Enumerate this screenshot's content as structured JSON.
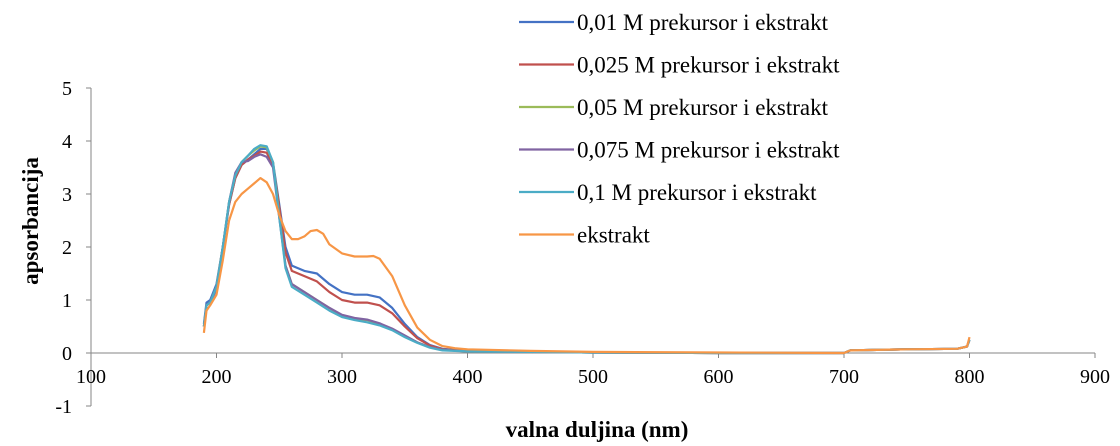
{
  "chart_data": {
    "type": "line",
    "title": "",
    "xlabel": "valna duljina (nm)",
    "ylabel": "apsorbancija",
    "xlim": [
      100,
      900
    ],
    "ylim": [
      -1,
      5
    ],
    "x_ticks": [
      "100",
      "200",
      "300",
      "400",
      "500",
      "600",
      "700",
      "800",
      "900"
    ],
    "y_ticks": [
      "-1",
      "0",
      "1",
      "2",
      "3",
      "4",
      "5"
    ],
    "grid": false,
    "legend_position": "top-right",
    "series": [
      {
        "name": "0,01 M prekursor i ekstrakt",
        "color": "#4472C4",
        "points": [
          [
            190,
            0.55
          ],
          [
            192,
            0.95
          ],
          [
            195,
            1.0
          ],
          [
            200,
            1.3
          ],
          [
            205,
            2.0
          ],
          [
            210,
            2.8
          ],
          [
            215,
            3.3
          ],
          [
            220,
            3.55
          ],
          [
            225,
            3.65
          ],
          [
            230,
            3.75
          ],
          [
            235,
            3.85
          ],
          [
            240,
            3.85
          ],
          [
            245,
            3.6
          ],
          [
            250,
            2.8
          ],
          [
            255,
            2.0
          ],
          [
            260,
            1.65
          ],
          [
            270,
            1.55
          ],
          [
            280,
            1.5
          ],
          [
            290,
            1.3
          ],
          [
            300,
            1.15
          ],
          [
            310,
            1.1
          ],
          [
            320,
            1.1
          ],
          [
            330,
            1.05
          ],
          [
            340,
            0.85
          ],
          [
            350,
            0.55
          ],
          [
            360,
            0.3
          ],
          [
            370,
            0.15
          ],
          [
            380,
            0.08
          ],
          [
            400,
            0.04
          ],
          [
            450,
            0.02
          ],
          [
            500,
            0.01
          ],
          [
            600,
            0.0
          ],
          [
            700,
            0.0
          ],
          [
            705,
            0.05
          ],
          [
            750,
            0.07
          ],
          [
            790,
            0.08
          ],
          [
            798,
            0.12
          ],
          [
            800,
            0.25
          ]
        ]
      },
      {
        "name": "0,025 M prekursor i ekstrakt",
        "color": "#C0504D",
        "points": [
          [
            190,
            0.5
          ],
          [
            192,
            0.9
          ],
          [
            195,
            0.95
          ],
          [
            200,
            1.25
          ],
          [
            205,
            2.0
          ],
          [
            210,
            2.8
          ],
          [
            215,
            3.3
          ],
          [
            220,
            3.55
          ],
          [
            225,
            3.65
          ],
          [
            230,
            3.72
          ],
          [
            235,
            3.8
          ],
          [
            240,
            3.78
          ],
          [
            245,
            3.55
          ],
          [
            250,
            2.75
          ],
          [
            255,
            1.9
          ],
          [
            260,
            1.55
          ],
          [
            270,
            1.45
          ],
          [
            280,
            1.35
          ],
          [
            290,
            1.15
          ],
          [
            300,
            1.0
          ],
          [
            310,
            0.95
          ],
          [
            320,
            0.95
          ],
          [
            330,
            0.9
          ],
          [
            340,
            0.75
          ],
          [
            350,
            0.5
          ],
          [
            360,
            0.28
          ],
          [
            370,
            0.14
          ],
          [
            380,
            0.07
          ],
          [
            400,
            0.04
          ],
          [
            450,
            0.02
          ],
          [
            500,
            0.01
          ],
          [
            600,
            0.0
          ],
          [
            700,
            0.0
          ],
          [
            705,
            0.05
          ],
          [
            750,
            0.07
          ],
          [
            790,
            0.08
          ],
          [
            798,
            0.12
          ],
          [
            800,
            0.25
          ]
        ]
      },
      {
        "name": "0,05 M prekursor i ekstrakt",
        "color": "#9BBB59",
        "points": [
          [
            190,
            0.5
          ],
          [
            192,
            0.9
          ],
          [
            195,
            0.95
          ],
          [
            200,
            1.25
          ],
          [
            205,
            2.0
          ],
          [
            210,
            2.85
          ],
          [
            215,
            3.35
          ],
          [
            220,
            3.6
          ],
          [
            225,
            3.72
          ],
          [
            230,
            3.82
          ],
          [
            235,
            3.9
          ],
          [
            240,
            3.88
          ],
          [
            245,
            3.6
          ],
          [
            250,
            2.6
          ],
          [
            255,
            1.65
          ],
          [
            260,
            1.3
          ],
          [
            270,
            1.15
          ],
          [
            280,
            1.0
          ],
          [
            290,
            0.85
          ],
          [
            300,
            0.7
          ],
          [
            310,
            0.65
          ],
          [
            320,
            0.62
          ],
          [
            330,
            0.55
          ],
          [
            340,
            0.45
          ],
          [
            350,
            0.32
          ],
          [
            360,
            0.2
          ],
          [
            370,
            0.11
          ],
          [
            380,
            0.06
          ],
          [
            400,
            0.03
          ],
          [
            450,
            0.02
          ],
          [
            500,
            0.01
          ],
          [
            600,
            0.0
          ],
          [
            700,
            0.0
          ],
          [
            705,
            0.05
          ],
          [
            750,
            0.07
          ],
          [
            790,
            0.08
          ],
          [
            798,
            0.12
          ],
          [
            800,
            0.25
          ]
        ]
      },
      {
        "name": "0,075 M prekursor i ekstrakt",
        "color": "#8064A2",
        "points": [
          [
            190,
            0.5
          ],
          [
            192,
            0.9
          ],
          [
            195,
            0.95
          ],
          [
            200,
            1.2
          ],
          [
            205,
            2.0
          ],
          [
            210,
            2.85
          ],
          [
            215,
            3.4
          ],
          [
            220,
            3.6
          ],
          [
            225,
            3.62
          ],
          [
            230,
            3.7
          ],
          [
            235,
            3.75
          ],
          [
            240,
            3.7
          ],
          [
            245,
            3.5
          ],
          [
            250,
            2.55
          ],
          [
            255,
            1.65
          ],
          [
            260,
            1.3
          ],
          [
            270,
            1.15
          ],
          [
            280,
            1.0
          ],
          [
            290,
            0.85
          ],
          [
            300,
            0.72
          ],
          [
            310,
            0.66
          ],
          [
            320,
            0.63
          ],
          [
            330,
            0.56
          ],
          [
            340,
            0.46
          ],
          [
            350,
            0.33
          ],
          [
            360,
            0.2
          ],
          [
            370,
            0.11
          ],
          [
            380,
            0.06
          ],
          [
            400,
            0.03
          ],
          [
            450,
            0.02
          ],
          [
            500,
            0.01
          ],
          [
            600,
            0.0
          ],
          [
            700,
            0.0
          ],
          [
            705,
            0.05
          ],
          [
            750,
            0.07
          ],
          [
            790,
            0.08
          ],
          [
            798,
            0.12
          ],
          [
            800,
            0.25
          ]
        ]
      },
      {
        "name": "0,1 M prekursor i ekstrakt",
        "color": "#4BACC6",
        "points": [
          [
            190,
            0.5
          ],
          [
            192,
            0.9
          ],
          [
            195,
            0.95
          ],
          [
            200,
            1.25
          ],
          [
            205,
            2.0
          ],
          [
            210,
            2.85
          ],
          [
            215,
            3.35
          ],
          [
            220,
            3.6
          ],
          [
            225,
            3.72
          ],
          [
            230,
            3.85
          ],
          [
            235,
            3.92
          ],
          [
            240,
            3.9
          ],
          [
            245,
            3.6
          ],
          [
            250,
            2.55
          ],
          [
            255,
            1.6
          ],
          [
            260,
            1.25
          ],
          [
            270,
            1.1
          ],
          [
            280,
            0.95
          ],
          [
            290,
            0.8
          ],
          [
            300,
            0.68
          ],
          [
            310,
            0.62
          ],
          [
            320,
            0.58
          ],
          [
            330,
            0.52
          ],
          [
            340,
            0.43
          ],
          [
            350,
            0.3
          ],
          [
            360,
            0.19
          ],
          [
            370,
            0.1
          ],
          [
            380,
            0.05
          ],
          [
            400,
            0.03
          ],
          [
            450,
            0.02
          ],
          [
            500,
            0.01
          ],
          [
            600,
            0.0
          ],
          [
            700,
            0.0
          ],
          [
            705,
            0.05
          ],
          [
            750,
            0.07
          ],
          [
            790,
            0.08
          ],
          [
            798,
            0.12
          ],
          [
            800,
            0.25
          ]
        ]
      },
      {
        "name": "ekstrakt",
        "color": "#F79646",
        "points": [
          [
            190,
            0.38
          ],
          [
            192,
            0.8
          ],
          [
            195,
            0.9
          ],
          [
            200,
            1.1
          ],
          [
            205,
            1.75
          ],
          [
            210,
            2.5
          ],
          [
            215,
            2.85
          ],
          [
            220,
            3.0
          ],
          [
            225,
            3.1
          ],
          [
            230,
            3.2
          ],
          [
            235,
            3.3
          ],
          [
            240,
            3.22
          ],
          [
            245,
            3.0
          ],
          [
            250,
            2.6
          ],
          [
            255,
            2.3
          ],
          [
            260,
            2.15
          ],
          [
            265,
            2.15
          ],
          [
            270,
            2.2
          ],
          [
            275,
            2.3
          ],
          [
            280,
            2.32
          ],
          [
            285,
            2.25
          ],
          [
            290,
            2.05
          ],
          [
            300,
            1.88
          ],
          [
            310,
            1.82
          ],
          [
            320,
            1.82
          ],
          [
            325,
            1.83
          ],
          [
            330,
            1.78
          ],
          [
            340,
            1.45
          ],
          [
            350,
            0.9
          ],
          [
            360,
            0.48
          ],
          [
            370,
            0.25
          ],
          [
            380,
            0.13
          ],
          [
            390,
            0.09
          ],
          [
            400,
            0.07
          ],
          [
            450,
            0.04
          ],
          [
            500,
            0.02
          ],
          [
            600,
            0.01
          ],
          [
            700,
            0.0
          ],
          [
            705,
            0.05
          ],
          [
            750,
            0.07
          ],
          [
            790,
            0.08
          ],
          [
            798,
            0.12
          ],
          [
            800,
            0.3
          ]
        ]
      }
    ]
  }
}
